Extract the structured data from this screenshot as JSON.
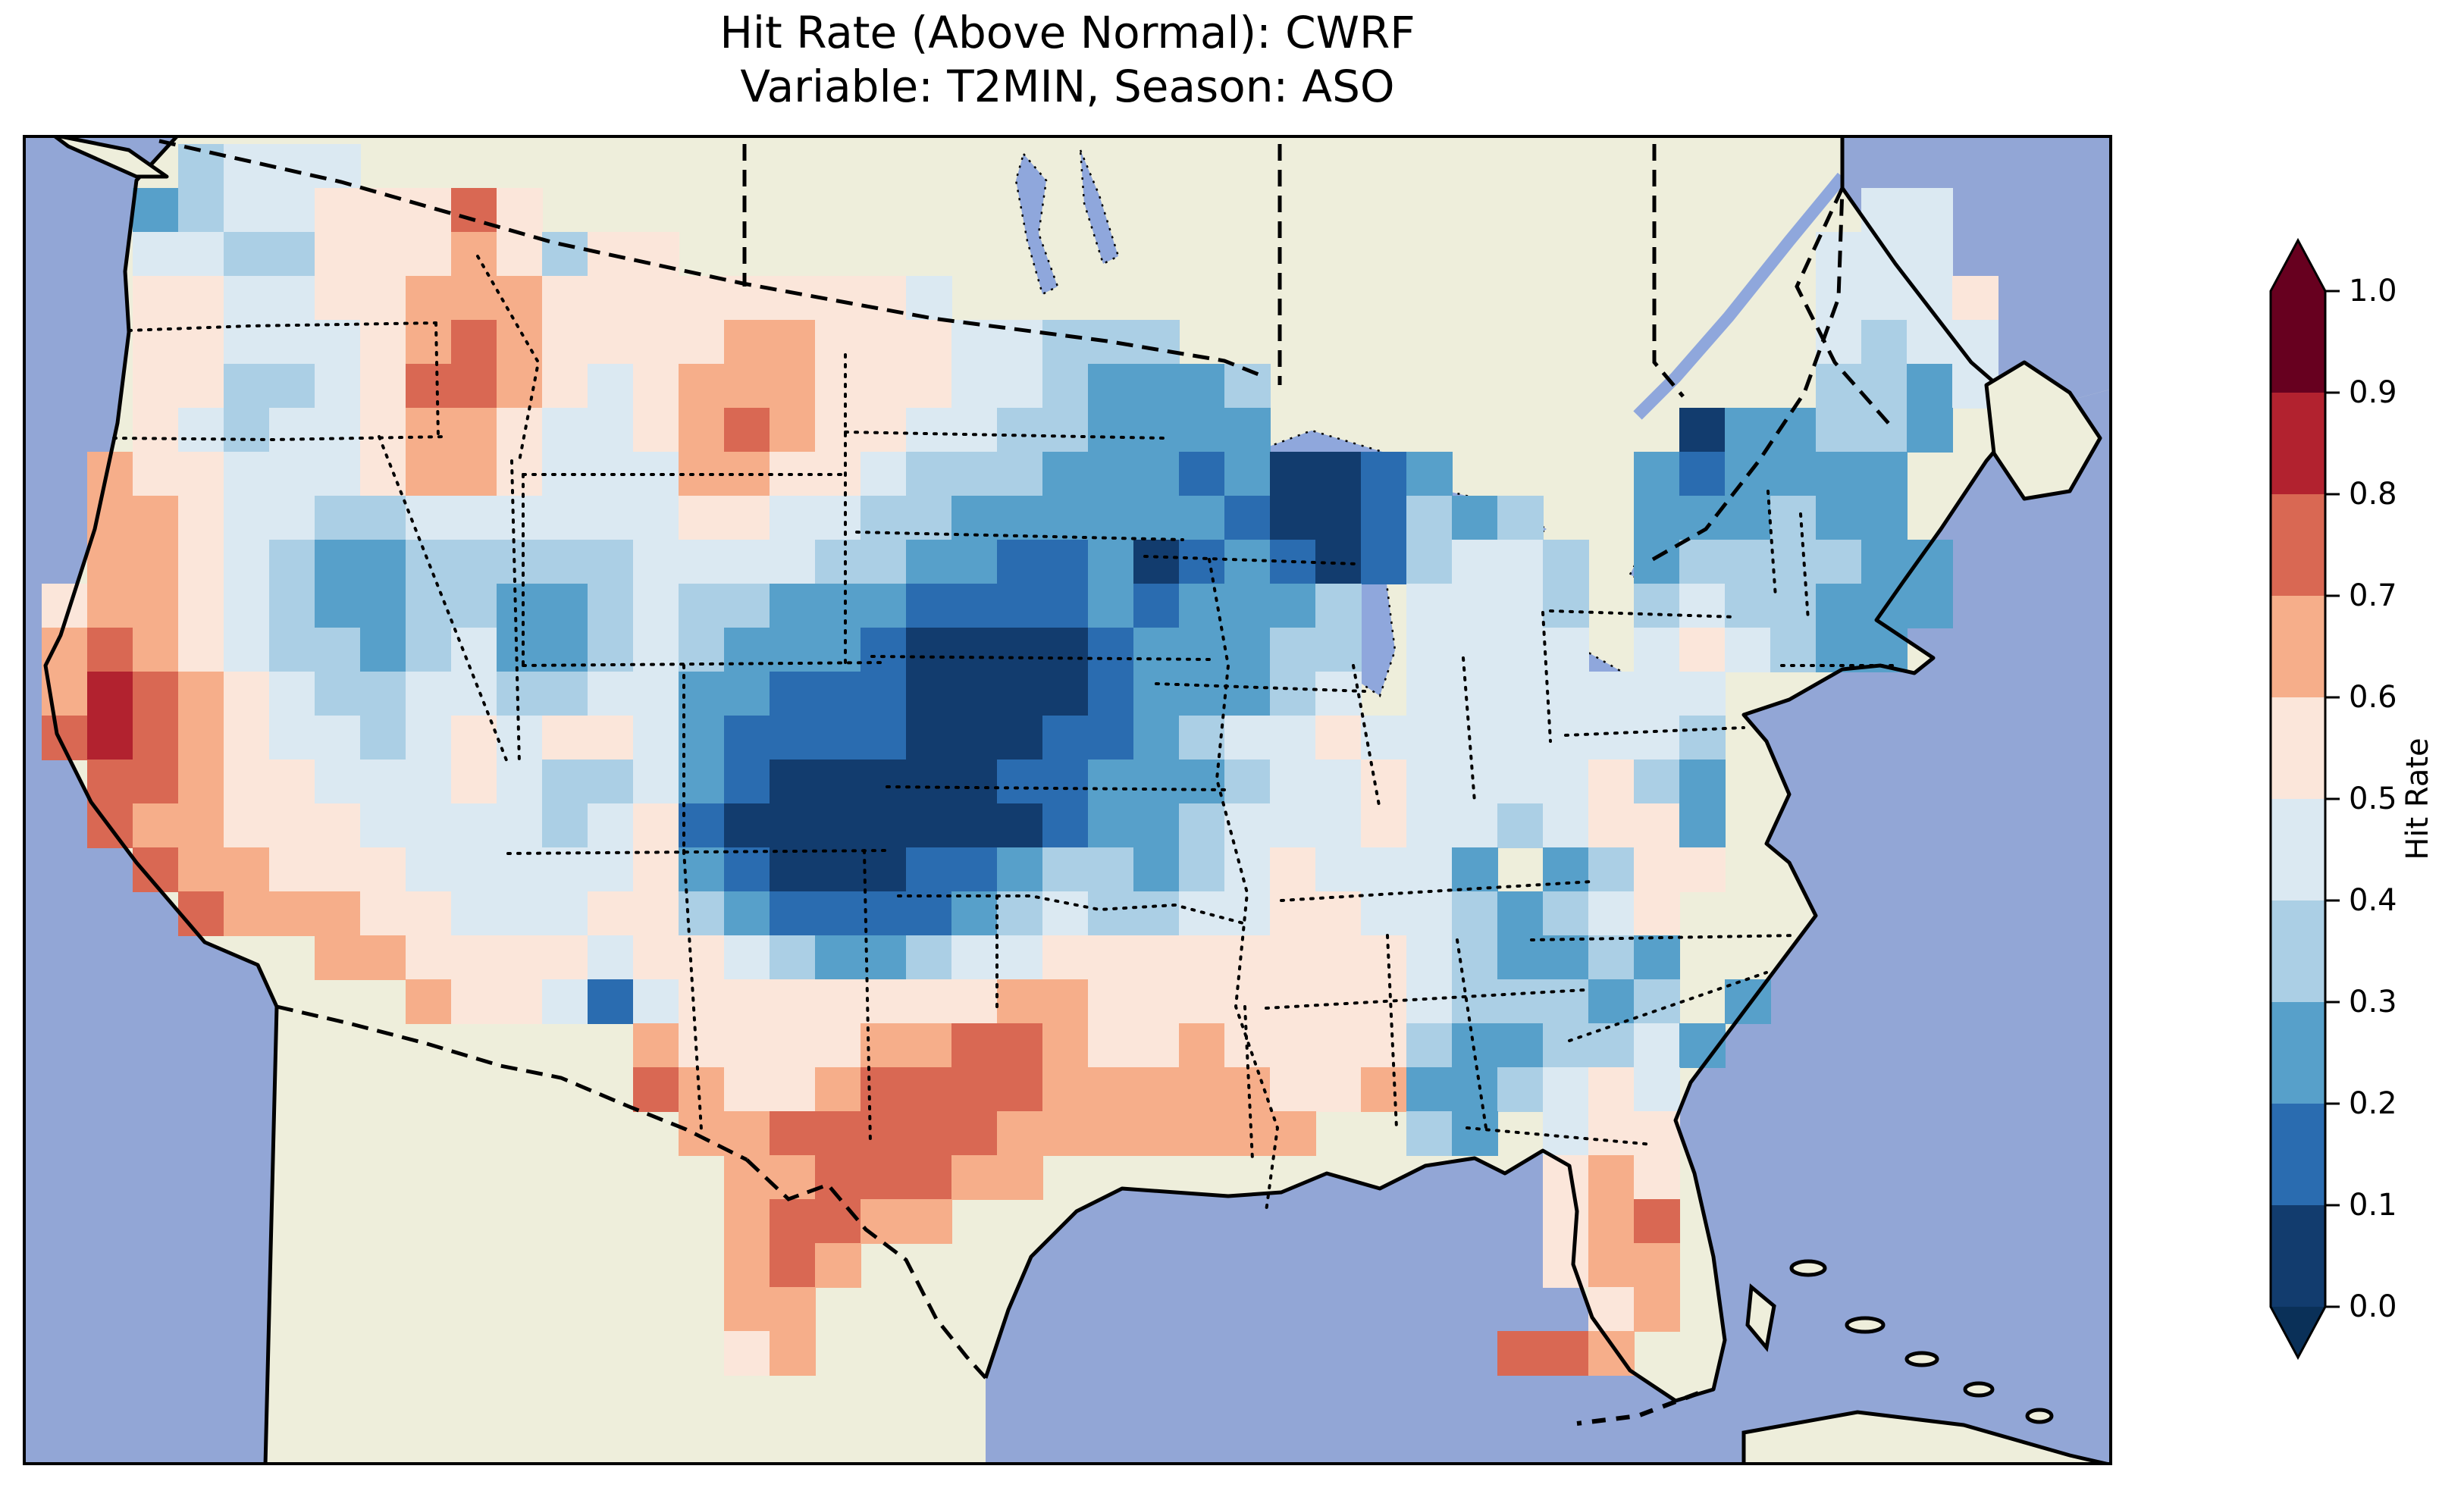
{
  "figure": {
    "title_line1": "Hit Rate (Above Normal): CWRF",
    "title_line2": "Variable: T2MIN, Season: ASO"
  },
  "colorbar": {
    "label": "Hit Rate",
    "tick_labels": [
      "0.0",
      "0.1",
      "0.2",
      "0.3",
      "0.4",
      "0.5",
      "0.6",
      "0.7",
      "0.8",
      "0.9",
      "1.0"
    ],
    "bin_colors": [
      "#123c6e",
      "#2a6cb0",
      "#57a0ca",
      "#abcfe5",
      "#dbe9f2",
      "#fbe6da",
      "#f6ae8a",
      "#d96853",
      "#b2222f",
      "#67001f"
    ],
    "under_color": "#0a3058",
    "over_color": "#67001f"
  },
  "map_colors": {
    "ocean": "#92a6d6",
    "land": "#eeeedb",
    "lake": "#8fa7dc"
  },
  "chart_data": {
    "type": "heatmap",
    "title": "Hit Rate (Above Normal): CWRF",
    "subtitle": "Variable: T2MIN, Season: ASO",
    "legend_label": "Hit Rate",
    "value_range": [
      0.0,
      1.0
    ],
    "bin_width": 0.1,
    "grid_encoding": "Each row is a west-to-east string of 44 cells; '.' = no data (outside USA); digit d = hit-rate bin [d/10,(d+1)/10). Rows run north to south.",
    "grid_rows": [
      "...3444.....................................",
      "..234455575.............................44..",
      "..443355565355.........................444..",
      "..554455666555555554...................4445.",
      "..55444567655556655544333..............4344.",
      "..5533457765456665554432223............3324.",
      "..5434456654456765544332222.........022332..",
      ".655444566544466554333222120012....212222...",
      ".66544334444445544332222221001323..222322...",
      ".665432233333444433221120121013443.2333322..",
      "56654322332234332221111212223.4443.3433222..",
      "67654332342234322210000122233.4444.454322...",
      "68765433443344221110000122234.4444444.......",
      "7876544345455421111000112344544444443.......",
      ".776554445433421000001122234454444532.......",
      ".766555444434510000000122344454434552.......",
      "..766555444445210001123323454442 2355.......",
      "...766655444553211112343344554432345........",
      "......665555455432234455555555432232........",
      "........6554145555555665555555433323 2......",
      ".............655556677655655553223342.......",
      ".............76556777766666556223454........",
      "..............66777776666666..32.455........",
      "...............6677766...........565........",
      "...............67766.............567........",
      "...............676...............566........",
      "...............66.................56........",
      "...............56...............776........."
    ]
  }
}
